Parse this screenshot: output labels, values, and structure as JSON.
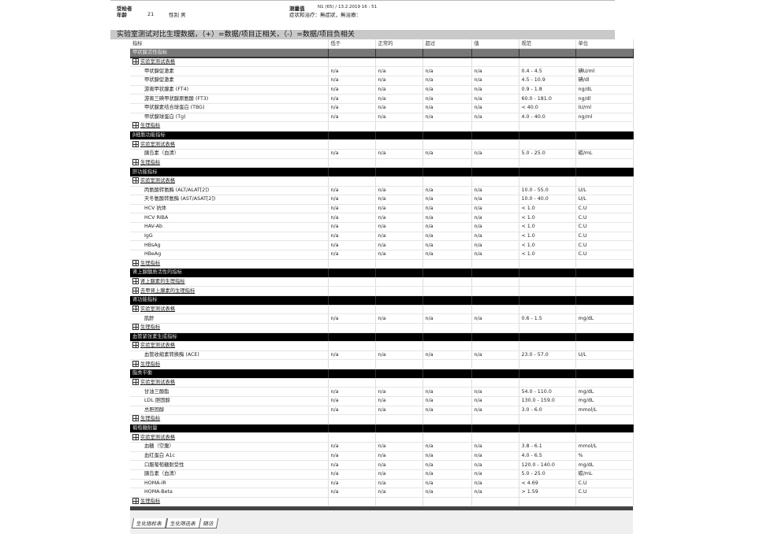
{
  "header": {
    "subject_label": "受检者",
    "age_label": "年龄",
    "age": "21",
    "sex": "性别 男",
    "measure_label": "测量值",
    "measure_value": "N1 (65) / 13.2.2019 16 : 51",
    "symptoms": "症状和治疗：無症狀，無治療："
  },
  "banner": "实验室测试对比生理数据，（+）=数据/项目正相关，（-）=数据/项目负相关",
  "columns": [
    "指标",
    "低于",
    "正常的",
    "超过",
    "值",
    "规范",
    "单位"
  ],
  "sections": [
    {
      "title": "甲状腺活性指标",
      "style": "gray",
      "rows": [
        {
          "type": "group",
          "label": "实验室测试表格"
        },
        {
          "type": "item",
          "label": "甲状腺促激素",
          "vals": [
            "n/a",
            "n/a",
            "n/a",
            "n/a"
          ],
          "range": "0.4 - 4.5",
          "unit": "碘U/ml"
        },
        {
          "type": "item",
          "label": "甲状腺促激素",
          "vals": [
            "n/a",
            "n/a",
            "n/a",
            "n/a"
          ],
          "range": "4.5 - 10.9",
          "unit": "碘/dl"
        },
        {
          "type": "item",
          "label": "游离甲状腺素 (FT4)",
          "vals": [
            "n/a",
            "n/a",
            "n/a",
            "n/a"
          ],
          "range": "0.9 - 1.8",
          "unit": "ng/dL"
        },
        {
          "type": "item",
          "label": "游离三碘甲状腺原氨酸 (FT3)",
          "vals": [
            "n/a",
            "n/a",
            "n/a",
            "n/a"
          ],
          "range": "60.0 - 181.0",
          "unit": "ng/dl"
        },
        {
          "type": "item",
          "label": "甲状腺素结合球蛋白 (TBG)",
          "vals": [
            "n/a",
            "n/a",
            "n/a",
            "n/a"
          ],
          "range": "< 40.0",
          "unit": "IU/ml"
        },
        {
          "type": "item",
          "label": "甲状腺球蛋白 (Tg)",
          "vals": [
            "n/a",
            "n/a",
            "n/a",
            "n/a"
          ],
          "range": "4.0 - 40.0",
          "unit": "ng/ml"
        },
        {
          "type": "group",
          "label": "生理指标"
        }
      ]
    },
    {
      "title": "β细胞功能指标",
      "style": "black",
      "rows": [
        {
          "type": "group",
          "label": "实验室测试表格"
        },
        {
          "type": "item",
          "label": "胰岛素（血清）",
          "vals": [
            "n/a",
            "n/a",
            "n/a",
            "n/a"
          ],
          "range": "5.0 - 25.0",
          "unit": "碳/mL"
        },
        {
          "type": "group",
          "label": "生理指标"
        }
      ]
    },
    {
      "title": "肝功能指标",
      "style": "black",
      "rows": [
        {
          "type": "group",
          "label": "实验室测试表格"
        },
        {
          "type": "item",
          "label": "丙氨酸转氨酶 (ALT/ALAT[2])",
          "vals": [
            "n/a",
            "n/a",
            "n/a",
            "n/a"
          ],
          "range": "10.0 - 55.0",
          "unit": "U/L"
        },
        {
          "type": "item",
          "label": "天冬氨酸转氨酶 (AST/ASAT[2])",
          "vals": [
            "n/a",
            "n/a",
            "n/a",
            "n/a"
          ],
          "range": "10.0 - 40.0",
          "unit": "U/L"
        },
        {
          "type": "item",
          "label": "HCV 抗体",
          "vals": [
            "n/a",
            "n/a",
            "n/a",
            "n/a"
          ],
          "range": "< 1.0",
          "unit": "C.U"
        },
        {
          "type": "item",
          "label": "HCV RIBA",
          "vals": [
            "n/a",
            "n/a",
            "n/a",
            "n/a"
          ],
          "range": "< 1.0",
          "unit": "C.U"
        },
        {
          "type": "item",
          "label": "HAV-Ab",
          "vals": [
            "n/a",
            "n/a",
            "n/a",
            "n/a"
          ],
          "range": "< 1.0",
          "unit": "C.U"
        },
        {
          "type": "item",
          "label": "IgG",
          "vals": [
            "n/a",
            "n/a",
            "n/a",
            "n/a"
          ],
          "range": "< 1.0",
          "unit": "C.U"
        },
        {
          "type": "item",
          "label": "HBsAg",
          "vals": [
            "n/a",
            "n/a",
            "n/a",
            "n/a"
          ],
          "range": "< 1.0",
          "unit": "C.U"
        },
        {
          "type": "item",
          "label": "HBeAg",
          "vals": [
            "n/a",
            "n/a",
            "n/a",
            "n/a"
          ],
          "range": "< 1.0",
          "unit": "C.U"
        },
        {
          "type": "group",
          "label": "生理指标"
        }
      ]
    },
    {
      "title": "肾上腺髓质活性的指标",
      "style": "black",
      "rows": [
        {
          "type": "group",
          "label": "肾上腺素的生理指标"
        },
        {
          "type": "group",
          "label": "去甲肾上腺素的生理指标"
        }
      ]
    },
    {
      "title": "肾功能指标",
      "style": "black",
      "rows": [
        {
          "type": "group",
          "label": "实验室测试表格"
        },
        {
          "type": "item",
          "label": "肌酐",
          "vals": [
            "n/a",
            "n/a",
            "n/a",
            "n/a"
          ],
          "range": "0.6 - 1.5",
          "unit": "mg/dL"
        },
        {
          "type": "group",
          "label": "生理指标"
        }
      ]
    },
    {
      "title": "血管紧张素生成指标",
      "style": "black",
      "rows": [
        {
          "type": "group",
          "label": "实验室测试表格"
        },
        {
          "type": "item",
          "label": "血管收缩素转换酶 (ACE)",
          "vals": [
            "n/a",
            "n/a",
            "n/a",
            "n/a"
          ],
          "range": "23.0 - 57.0",
          "unit": "U/L"
        },
        {
          "type": "group",
          "label": "生理指标"
        }
      ]
    },
    {
      "title": "脂类平衡",
      "style": "black",
      "rows": [
        {
          "type": "group",
          "label": "实验室测试表格"
        },
        {
          "type": "item",
          "label": "甘油三酸酯",
          "vals": [
            "n/a",
            "n/a",
            "n/a",
            "n/a"
          ],
          "range": "54.0 - 110.0",
          "unit": "mg/dL"
        },
        {
          "type": "item",
          "label": "LDL 胆固醇",
          "vals": [
            "n/a",
            "n/a",
            "n/a",
            "n/a"
          ],
          "range": "130.0 - 159.0",
          "unit": "mg/dL"
        },
        {
          "type": "item",
          "label": "总胆固醇",
          "vals": [
            "n/a",
            "n/a",
            "n/a",
            "n/a"
          ],
          "range": "3.0 - 6.0",
          "unit": "mmol/L"
        },
        {
          "type": "group",
          "label": "生理指标"
        }
      ]
    },
    {
      "title": "葡萄糖耐量",
      "style": "black",
      "rows": [
        {
          "type": "group",
          "label": "实验室测试表格"
        },
        {
          "type": "item",
          "label": "血糖（空腹）",
          "vals": [
            "n/a",
            "n/a",
            "n/a",
            "n/a"
          ],
          "range": "3.8 - 6.1",
          "unit": "mmol/L"
        },
        {
          "type": "item",
          "label": "血红蛋白 A1c",
          "vals": [
            "n/a",
            "n/a",
            "n/a",
            "n/a"
          ],
          "range": "4.0 - 6.5",
          "unit": "%"
        },
        {
          "type": "item",
          "label": "口服葡萄糖耐受性",
          "vals": [
            "n/a",
            "n/a",
            "n/a",
            "n/a"
          ],
          "range": "120.0 - 140.0",
          "unit": "mg/dL"
        },
        {
          "type": "item",
          "label": "胰岛素（血清）",
          "vals": [
            "n/a",
            "n/a",
            "n/a",
            "n/a"
          ],
          "range": "5.0 - 25.0",
          "unit": "碳/mL"
        },
        {
          "type": "item",
          "label": "HOMA-IR",
          "vals": [
            "n/a",
            "n/a",
            "n/a",
            "n/a"
          ],
          "range": "< 4.69",
          "unit": "C.U"
        },
        {
          "type": "item",
          "label": "HOMA-Beta",
          "vals": [
            "n/a",
            "n/a",
            "n/a",
            "n/a"
          ],
          "range": "> 1.59",
          "unit": "C.U"
        },
        {
          "type": "group",
          "label": "生理指标"
        }
      ]
    }
  ],
  "tabs": [
    "生化指标表",
    "生化筛选表",
    "随访"
  ]
}
